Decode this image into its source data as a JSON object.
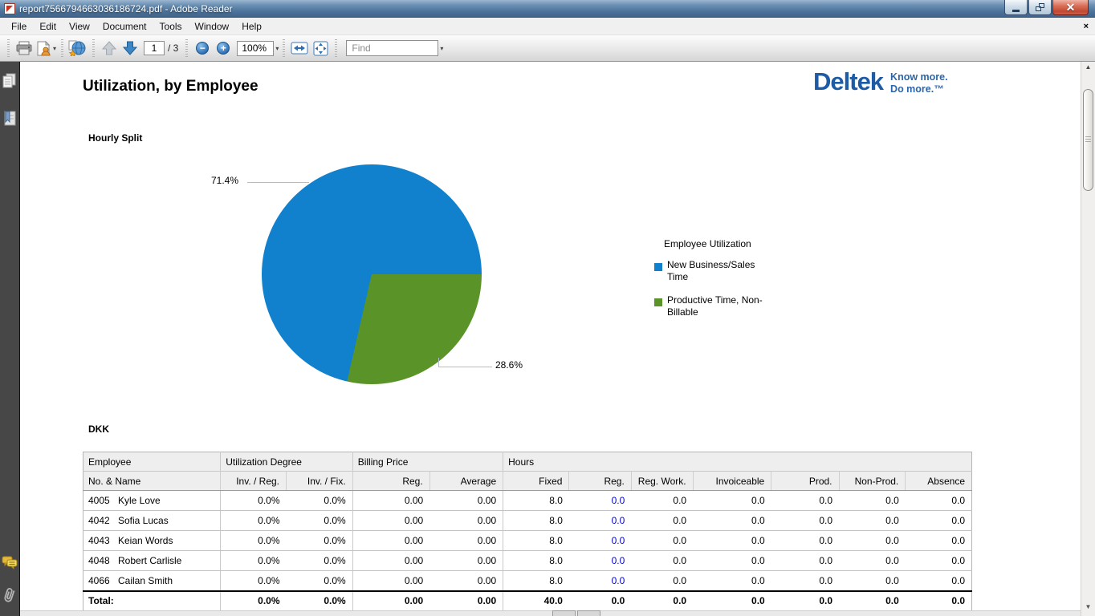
{
  "window": {
    "title": "report7566794663036186724.pdf - Adobe Reader"
  },
  "menu": {
    "items": [
      "File",
      "Edit",
      "View",
      "Document",
      "Tools",
      "Window",
      "Help"
    ]
  },
  "toolbar": {
    "page_current": "1",
    "page_total": "/ 3",
    "zoom_level": "100%",
    "find_placeholder": "Find"
  },
  "icons": {
    "caret_down": "▾",
    "menu_close": "×",
    "scroll_up": "▲",
    "scroll_down": "▼",
    "zoom_out": "−",
    "zoom_in": "+"
  },
  "document": {
    "title": "Utilization, by Employee",
    "logo": {
      "brand": "Deltek",
      "tagline_line1": "Know more.",
      "tagline_line2": "Do more.™"
    },
    "chart_section_label": "Hourly Split",
    "table_section_label": "DKK"
  },
  "chart_data": {
    "type": "pie",
    "title": "Hourly Split",
    "legend_title": "Employee Utilization",
    "legend_position": "right",
    "slices": [
      {
        "label": "New Business/Sales Time",
        "value": 71.4,
        "data_label": "71.4%",
        "color": "#1181ce"
      },
      {
        "label": "Productive Time, Non-Billable",
        "value": 28.6,
        "data_label": "28.6%",
        "color": "#5a9428"
      }
    ]
  },
  "table": {
    "group_headers": [
      {
        "label": "Employee",
        "span": 1
      },
      {
        "label": "Utilization Degree",
        "span": 2
      },
      {
        "label": "Billing Price",
        "span": 2
      },
      {
        "label": "Hours",
        "span": 7
      }
    ],
    "columns": [
      "No. & Name",
      "Inv. / Reg.",
      "Inv. / Fix.",
      "Reg.",
      "Average",
      "Fixed",
      "Reg.",
      "Reg. Work.",
      "Invoiceable",
      "Prod.",
      "Non-Prod.",
      "Absence"
    ],
    "rows": [
      {
        "no": "4005",
        "name": "Kyle Love",
        "values": [
          "0.0%",
          "0.0%",
          "0.00",
          "0.00",
          "8.0",
          "0.0",
          "0.0",
          "0.0",
          "0.0",
          "0.0",
          "0.0"
        ]
      },
      {
        "no": "4042",
        "name": "Sofia Lucas",
        "values": [
          "0.0%",
          "0.0%",
          "0.00",
          "0.00",
          "8.0",
          "0.0",
          "0.0",
          "0.0",
          "0.0",
          "0.0",
          "0.0"
        ]
      },
      {
        "no": "4043",
        "name": "Keian Words",
        "values": [
          "0.0%",
          "0.0%",
          "0.00",
          "0.00",
          "8.0",
          "0.0",
          "0.0",
          "0.0",
          "0.0",
          "0.0",
          "0.0"
        ]
      },
      {
        "no": "4048",
        "name": "Robert Carlisle",
        "values": [
          "0.0%",
          "0.0%",
          "0.00",
          "0.00",
          "8.0",
          "0.0",
          "0.0",
          "0.0",
          "0.0",
          "0.0",
          "0.0"
        ]
      },
      {
        "no": "4066",
        "name": "Cailan Smith",
        "values": [
          "0.0%",
          "0.0%",
          "0.00",
          "0.00",
          "8.0",
          "0.0",
          "0.0",
          "0.0",
          "0.0",
          "0.0",
          "0.0"
        ]
      }
    ],
    "total": {
      "label": "Total:",
      "values": [
        "0.0%",
        "0.0%",
        "0.00",
        "0.00",
        "40.0",
        "0.0",
        "0.0",
        "0.0",
        "0.0",
        "0.0",
        "0.0"
      ]
    },
    "link_column_index": 5,
    "link_color": "#0000cc"
  }
}
